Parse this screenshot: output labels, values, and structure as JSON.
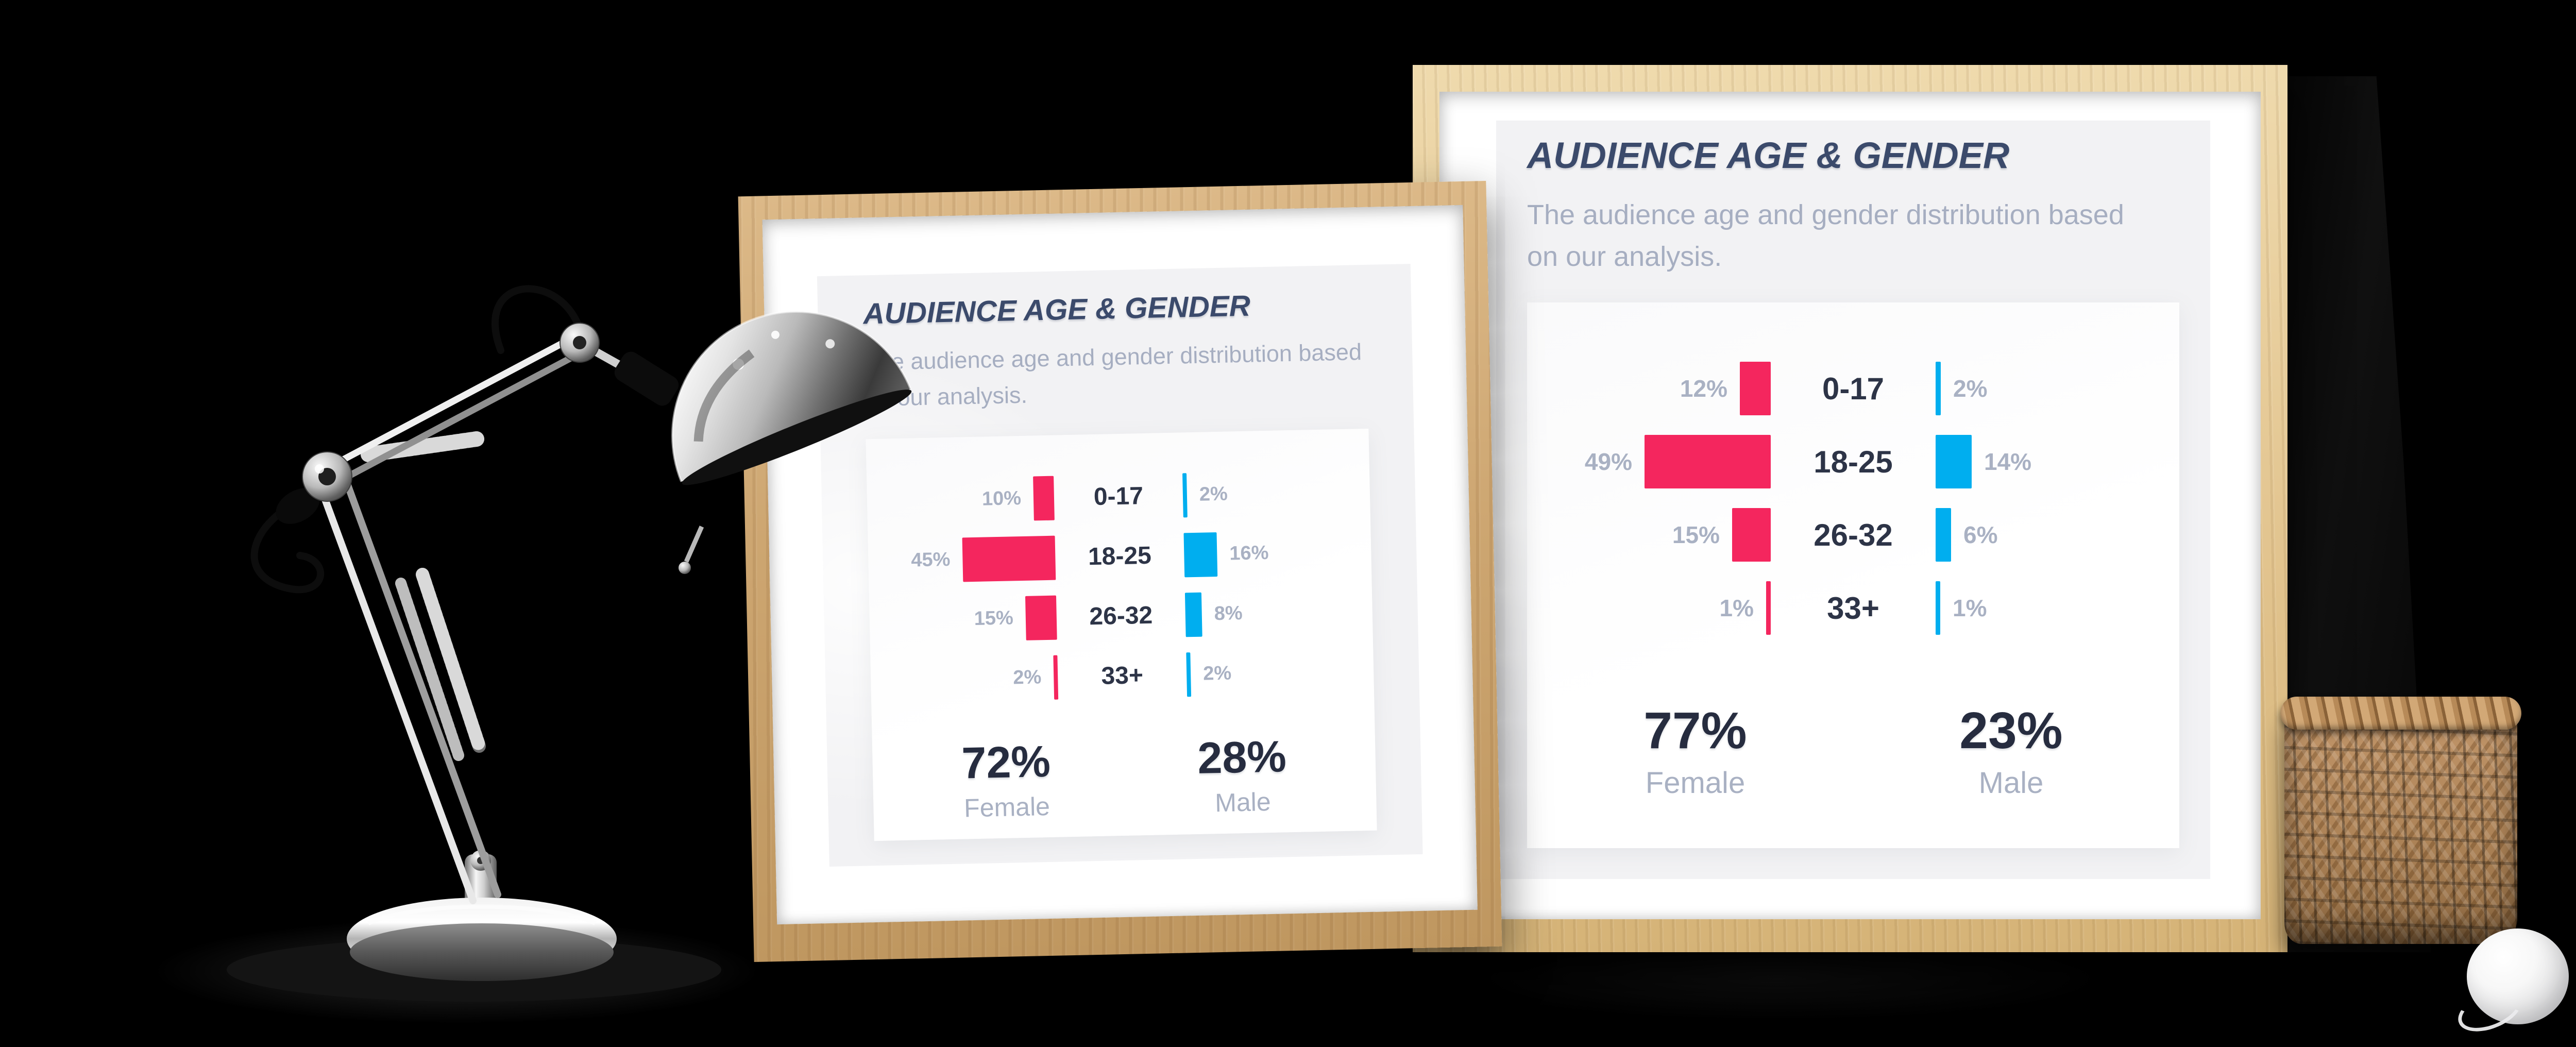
{
  "scene": {
    "background_color": "#000000",
    "objects": [
      "chrome desk lamp",
      "wooden picture frame (small)",
      "wooden picture frame (large)",
      "dark books",
      "woven seagrass basket",
      "white glossy ball ornament"
    ]
  },
  "theme": {
    "female_color": "#F4265E",
    "male_color": "#00AEEF",
    "title_color": "#3B4A6B",
    "subtitle_color": "#A6AEC1",
    "percent_label_color": "#A9B1C3",
    "age_label_color": "#2D3447",
    "total_number_color": "#262C3F",
    "card_background": "#F2F2F4",
    "wood_left": "#CDA671",
    "wood_right": "#E2C48F"
  },
  "chart_data": [
    {
      "type": "bar",
      "orientation": "horizontal-diverging",
      "title": "AUDIENCE AGE & GENDER",
      "subtitle": "The audience age and gender distribution based on our analysis.",
      "categories": [
        "0-17",
        "18-25",
        "26-32",
        "33+"
      ],
      "series": [
        {
          "name": "Female",
          "color": "#F4265E",
          "values": [
            10,
            45,
            15,
            2
          ]
        },
        {
          "name": "Male",
          "color": "#00AEEF",
          "values": [
            2,
            16,
            8,
            2
          ]
        }
      ],
      "totals": {
        "female": 72,
        "male": 28
      },
      "legend": {
        "female_label": "Female",
        "male_label": "Male"
      },
      "value_suffix": "%",
      "grid": false,
      "xlim": [
        0,
        50
      ]
    },
    {
      "type": "bar",
      "orientation": "horizontal-diverging",
      "title": "AUDIENCE AGE & GENDER",
      "subtitle": "The audience age and gender distribution based on our analysis.",
      "categories": [
        "0-17",
        "18-25",
        "26-32",
        "33+"
      ],
      "series": [
        {
          "name": "Female",
          "color": "#F4265E",
          "values": [
            12,
            49,
            15,
            1
          ]
        },
        {
          "name": "Male",
          "color": "#00AEEF",
          "values": [
            2,
            14,
            6,
            1
          ]
        }
      ],
      "totals": {
        "female": 77,
        "male": 23
      },
      "legend": {
        "female_label": "Female",
        "male_label": "Male"
      },
      "value_suffix": "%",
      "grid": false,
      "xlim": [
        0,
        50
      ]
    }
  ]
}
